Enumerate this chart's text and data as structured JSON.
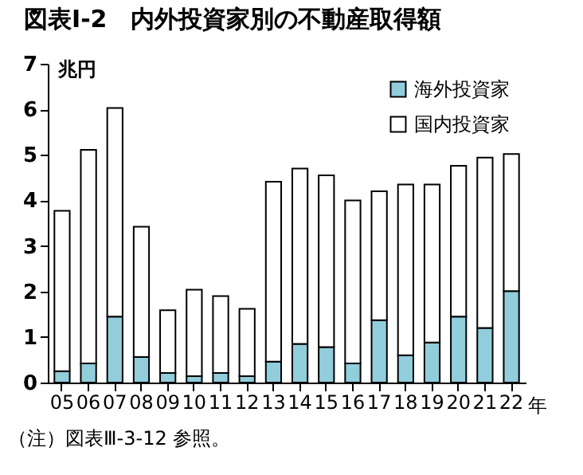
{
  "chart_data": {
    "type": "bar",
    "stacked": true,
    "title": "図表Ⅰ-2　内外投資家別の不動産取得額",
    "ylabel": "兆円",
    "xlabel": "年",
    "categories": [
      "05",
      "06",
      "07",
      "08",
      "09",
      "10",
      "11",
      "12",
      "13",
      "14",
      "15",
      "16",
      "17",
      "18",
      "19",
      "20",
      "21",
      "22"
    ],
    "series": [
      {
        "name": "海外投資家",
        "color": "#92cddc",
        "values": [
          0.25,
          0.42,
          1.45,
          0.56,
          0.21,
          0.14,
          0.21,
          0.14,
          0.46,
          0.85,
          0.78,
          0.42,
          1.37,
          0.6,
          0.88,
          1.45,
          1.2,
          2.01
        ]
      },
      {
        "name": "国内投資家",
        "color": "#ffffff",
        "values": [
          3.52,
          4.69,
          4.58,
          2.86,
          1.38,
          1.9,
          1.69,
          1.48,
          3.95,
          3.85,
          3.77,
          3.58,
          2.83,
          3.75,
          3.47,
          3.31,
          3.74,
          3.01
        ]
      }
    ],
    "ylim": [
      0,
      7
    ],
    "yticks": [
      0,
      1,
      2,
      3,
      4,
      5,
      6,
      7
    ],
    "grid": false,
    "legend": "top right",
    "annotations": [
      "（注）図表Ⅲ-3-12 参照。"
    ]
  }
}
